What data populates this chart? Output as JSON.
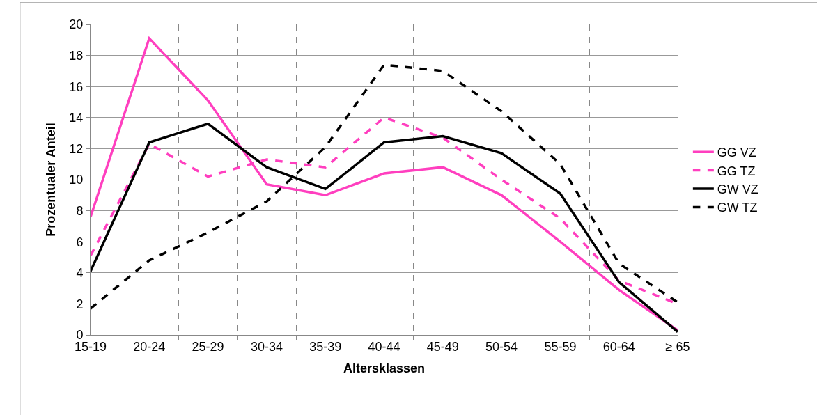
{
  "chart_data": {
    "type": "line",
    "xlabel": "Altersklassen",
    "ylabel": "Prozentualer Anteil",
    "categories": [
      "15-19",
      "20-24",
      "25-29",
      "30-34",
      "35-39",
      "40-44",
      "45-49",
      "50-54",
      "55-59",
      "60-64",
      "≥ 65"
    ],
    "series": [
      {
        "name": "GG VZ",
        "color": "#ff3fbf",
        "line_style": "solid",
        "values": [
          7.6,
          19.1,
          15.1,
          9.7,
          9.0,
          10.4,
          10.8,
          9.0,
          6.0,
          2.9,
          0.3
        ]
      },
      {
        "name": "GG TZ",
        "color": "#ff3fbf",
        "line_style": "dashed",
        "values": [
          5.1,
          12.3,
          10.2,
          11.3,
          10.8,
          14.0,
          12.7,
          10.0,
          7.5,
          3.5,
          2.0
        ]
      },
      {
        "name": "GW VZ",
        "color": "#000000",
        "line_style": "solid",
        "values": [
          4.1,
          12.4,
          13.6,
          10.8,
          9.4,
          12.4,
          12.8,
          11.7,
          9.1,
          3.4,
          0.2
        ]
      },
      {
        "name": "GW TZ",
        "color": "#000000",
        "line_style": "dashed",
        "values": [
          1.7,
          4.8,
          6.6,
          8.6,
          12.1,
          17.4,
          17.0,
          14.4,
          11.0,
          4.6,
          2.1
        ]
      }
    ],
    "ylim": [
      0,
      20
    ],
    "yticks": [
      0,
      2,
      4,
      6,
      8,
      10,
      12,
      14,
      16,
      18,
      20
    ],
    "grid": true,
    "legend": "right",
    "marker": "none"
  }
}
